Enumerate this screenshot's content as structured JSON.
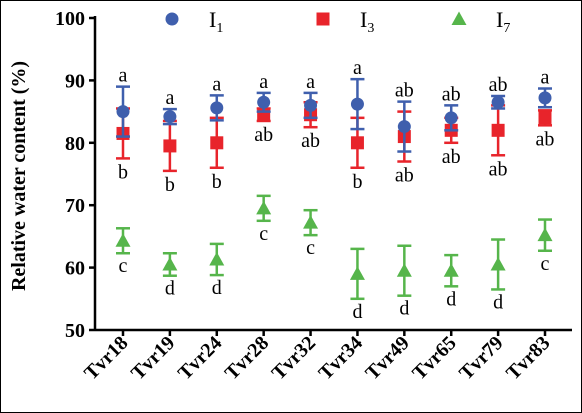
{
  "chart_data": {
    "type": "scatter",
    "title": "",
    "xlabel": "",
    "ylabel": "Relative water content (%)",
    "ylim": [
      50,
      100
    ],
    "yticks": [
      "50",
      "60",
      "70",
      "80",
      "90",
      "100"
    ],
    "categories": [
      "Tvr18",
      "Tvr19",
      "Tvr24",
      "Tvr28",
      "Tvr32",
      "Tvr34",
      "Tvr49",
      "Tvr65",
      "Tvr79",
      "Tvr83"
    ],
    "legend_position": "top",
    "series": [
      {
        "name": "I1",
        "name_main": "I",
        "name_sub": "1",
        "marker": "circle",
        "color": "#3f5fad",
        "values": [
          85.0,
          84.2,
          85.6,
          86.5,
          86.0,
          86.2,
          82.6,
          84.0,
          86.5,
          87.2
        ],
        "errors": [
          4.0,
          1.2,
          2.0,
          1.5,
          2.0,
          4.0,
          4.0,
          2.0,
          1.0,
          1.5
        ],
        "labels": [
          "a",
          "a",
          "a",
          "a",
          "a",
          "a",
          "ab",
          "ab",
          "ab",
          "a"
        ]
      },
      {
        "name": "I3",
        "name_main": "I",
        "name_sub": "3",
        "marker": "square",
        "color": "#e8242b",
        "values": [
          81.5,
          79.5,
          80.0,
          84.5,
          84.5,
          80.0,
          81.0,
          82.0,
          82.0,
          84.0
        ],
        "errors": [
          4.0,
          4.0,
          4.0,
          1.0,
          2.0,
          4.0,
          4.0,
          2.0,
          4.0,
          1.2
        ],
        "labels": [
          "b",
          "b",
          "b",
          "ab",
          "ab",
          "b",
          "ab",
          "ab",
          "ab",
          "ab"
        ]
      },
      {
        "name": "I7",
        "name_main": "I",
        "name_sub": "7",
        "marker": "triangle",
        "color": "#56b54b",
        "values": [
          64.3,
          60.5,
          61.3,
          69.5,
          67.2,
          59.0,
          59.5,
          59.5,
          60.5,
          65.2
        ],
        "errors": [
          2.0,
          1.8,
          2.5,
          2.0,
          2.0,
          4.0,
          4.0,
          2.5,
          4.0,
          2.5
        ],
        "labels": [
          "c",
          "d",
          "d",
          "c",
          "c",
          "d",
          "d",
          "d",
          "d",
          "c"
        ]
      }
    ]
  }
}
